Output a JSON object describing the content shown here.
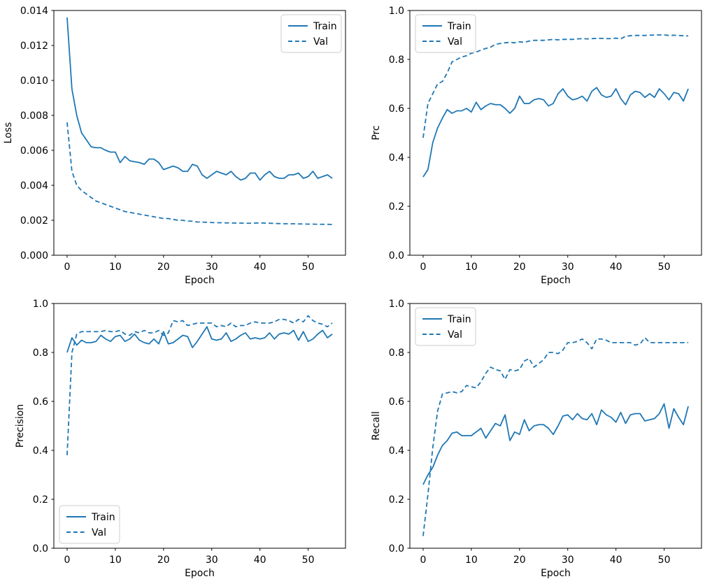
{
  "figure": {
    "background_color": "#ffffff",
    "line_color": "#1f77b4",
    "legend_labels": [
      "Train",
      "Val"
    ]
  },
  "chart_data": [
    {
      "type": "line",
      "title": "",
      "xlabel": "Epoch",
      "ylabel": "Loss",
      "x_start": 0,
      "x_step": 1,
      "xlim": [
        -2.75,
        57.75
      ],
      "ylim": [
        0,
        0.014
      ],
      "xticks": [
        0,
        10,
        20,
        30,
        40,
        50
      ],
      "xtick_labels": [
        "0",
        "10",
        "20",
        "30",
        "40",
        "50"
      ],
      "yticks": [
        0,
        0.002,
        0.004,
        0.006,
        0.008,
        0.01,
        0.012,
        0.014
      ],
      "ytick_labels": [
        "0.000",
        "0.002",
        "0.004",
        "0.006",
        "0.008",
        "0.010",
        "0.012",
        "0.014"
      ],
      "grid": false,
      "legend_position": "upper right",
      "series": [
        {
          "name": "Train",
          "line_style": "solid",
          "values": [
            0.0136,
            0.0095,
            0.008,
            0.007,
            0.0066,
            0.0062,
            0.00615,
            0.00615,
            0.006,
            0.0059,
            0.0059,
            0.0053,
            0.00565,
            0.0054,
            0.00535,
            0.0053,
            0.0052,
            0.0055,
            0.0055,
            0.0053,
            0.0049,
            0.005,
            0.0051,
            0.005,
            0.0048,
            0.0048,
            0.0052,
            0.0051,
            0.0046,
            0.0044,
            0.0046,
            0.0048,
            0.0047,
            0.0046,
            0.0048,
            0.0045,
            0.0043,
            0.0044,
            0.0047,
            0.0047,
            0.0043,
            0.0046,
            0.0048,
            0.0045,
            0.0044,
            0.0044,
            0.0046,
            0.0046,
            0.0047,
            0.0044,
            0.0045,
            0.0048,
            0.0044,
            0.0045,
            0.0046,
            0.0044
          ]
        },
        {
          "name": "Val",
          "line_style": "dashed",
          "values": [
            0.0076,
            0.0048,
            0.004,
            0.0037,
            0.0035,
            0.0033,
            0.0031,
            0.003,
            0.0029,
            0.0028,
            0.0027,
            0.0026,
            0.0025,
            0.00245,
            0.0024,
            0.00235,
            0.0023,
            0.00225,
            0.0022,
            0.00215,
            0.0021,
            0.0021,
            0.00205,
            0.002,
            0.002,
            0.00195,
            0.00195,
            0.0019,
            0.0019,
            0.00188,
            0.00187,
            0.00186,
            0.00186,
            0.00185,
            0.00185,
            0.00184,
            0.00184,
            0.00183,
            0.00183,
            0.00184,
            0.00185,
            0.00184,
            0.00183,
            0.00182,
            0.00181,
            0.0018,
            0.0018,
            0.0018,
            0.00179,
            0.00179,
            0.00178,
            0.00178,
            0.00177,
            0.00177,
            0.00177,
            0.00176
          ]
        }
      ]
    },
    {
      "type": "line",
      "title": "",
      "xlabel": "Epoch",
      "ylabel": "Prc",
      "x_start": 0,
      "x_step": 1,
      "xlim": [
        -2.75,
        57.75
      ],
      "ylim": [
        0,
        1.0
      ],
      "xticks": [
        0,
        10,
        20,
        30,
        40,
        50
      ],
      "xtick_labels": [
        "0",
        "10",
        "20",
        "30",
        "40",
        "50"
      ],
      "yticks": [
        0,
        0.2,
        0.4,
        0.6,
        0.8,
        1.0
      ],
      "ytick_labels": [
        "0.0",
        "0.2",
        "0.4",
        "0.6",
        "0.8",
        "1.0"
      ],
      "grid": false,
      "legend_position": "upper left",
      "series": [
        {
          "name": "Train",
          "line_style": "solid",
          "values": [
            0.32,
            0.35,
            0.46,
            0.52,
            0.56,
            0.595,
            0.58,
            0.59,
            0.59,
            0.6,
            0.585,
            0.625,
            0.595,
            0.61,
            0.62,
            0.615,
            0.615,
            0.6,
            0.58,
            0.6,
            0.65,
            0.62,
            0.62,
            0.635,
            0.64,
            0.635,
            0.61,
            0.62,
            0.66,
            0.68,
            0.65,
            0.635,
            0.64,
            0.65,
            0.63,
            0.67,
            0.685,
            0.655,
            0.645,
            0.65,
            0.68,
            0.64,
            0.615,
            0.655,
            0.67,
            0.665,
            0.645,
            0.66,
            0.645,
            0.68,
            0.66,
            0.635,
            0.665,
            0.66,
            0.63,
            0.68
          ]
        },
        {
          "name": "Val",
          "line_style": "dashed",
          "values": [
            0.48,
            0.62,
            0.66,
            0.7,
            0.71,
            0.745,
            0.79,
            0.8,
            0.81,
            0.815,
            0.825,
            0.83,
            0.838,
            0.845,
            0.85,
            0.862,
            0.865,
            0.868,
            0.87,
            0.868,
            0.872,
            0.87,
            0.875,
            0.878,
            0.878,
            0.878,
            0.88,
            0.882,
            0.88,
            0.882,
            0.882,
            0.882,
            0.884,
            0.885,
            0.884,
            0.885,
            0.886,
            0.886,
            0.885,
            0.885,
            0.887,
            0.884,
            0.895,
            0.897,
            0.898,
            0.898,
            0.898,
            0.899,
            0.9,
            0.9,
            0.9,
            0.898,
            0.899,
            0.898,
            0.897,
            0.896
          ]
        }
      ]
    },
    {
      "type": "line",
      "title": "",
      "xlabel": "Epoch",
      "ylabel": "Precision",
      "x_start": 0,
      "x_step": 1,
      "xlim": [
        -2.75,
        57.75
      ],
      "ylim": [
        0,
        1.0
      ],
      "xticks": [
        0,
        10,
        20,
        30,
        40,
        50
      ],
      "xtick_labels": [
        "0",
        "10",
        "20",
        "30",
        "40",
        "50"
      ],
      "yticks": [
        0,
        0.2,
        0.4,
        0.6,
        0.8,
        1.0
      ],
      "ytick_labels": [
        "0.0",
        "0.2",
        "0.4",
        "0.6",
        "0.8",
        "1.0"
      ],
      "grid": false,
      "legend_position": "lower left",
      "series": [
        {
          "name": "Train",
          "line_style": "solid",
          "values": [
            0.8,
            0.86,
            0.83,
            0.85,
            0.84,
            0.84,
            0.845,
            0.87,
            0.855,
            0.845,
            0.865,
            0.87,
            0.845,
            0.855,
            0.875,
            0.85,
            0.84,
            0.835,
            0.855,
            0.835,
            0.885,
            0.835,
            0.84,
            0.855,
            0.87,
            0.865,
            0.82,
            0.845,
            0.875,
            0.905,
            0.855,
            0.85,
            0.855,
            0.88,
            0.845,
            0.855,
            0.87,
            0.88,
            0.855,
            0.86,
            0.855,
            0.86,
            0.88,
            0.855,
            0.875,
            0.88,
            0.875,
            0.89,
            0.85,
            0.885,
            0.845,
            0.855,
            0.875,
            0.89,
            0.86,
            0.875
          ]
        },
        {
          "name": "Val",
          "line_style": "dashed",
          "values": [
            0.38,
            0.8,
            0.875,
            0.885,
            0.885,
            0.885,
            0.885,
            0.885,
            0.89,
            0.885,
            0.885,
            0.89,
            0.875,
            0.87,
            0.885,
            0.88,
            0.89,
            0.88,
            0.88,
            0.89,
            0.87,
            0.88,
            0.93,
            0.925,
            0.93,
            0.91,
            0.915,
            0.92,
            0.92,
            0.92,
            0.92,
            0.905,
            0.91,
            0.905,
            0.92,
            0.905,
            0.91,
            0.91,
            0.92,
            0.925,
            0.92,
            0.92,
            0.92,
            0.925,
            0.935,
            0.935,
            0.93,
            0.92,
            0.935,
            0.925,
            0.95,
            0.93,
            0.92,
            0.915,
            0.905,
            0.92
          ]
        }
      ]
    },
    {
      "type": "line",
      "title": "",
      "xlabel": "Epoch",
      "ylabel": "Recall",
      "x_start": 0,
      "x_step": 1,
      "xlim": [
        -2.75,
        57.75
      ],
      "ylim": [
        0,
        1.0
      ],
      "xticks": [
        0,
        10,
        20,
        30,
        40,
        50
      ],
      "xtick_labels": [
        "0",
        "10",
        "20",
        "30",
        "40",
        "50"
      ],
      "yticks": [
        0,
        0.2,
        0.4,
        0.6,
        0.8,
        1.0
      ],
      "ytick_labels": [
        "0.0",
        "0.2",
        "0.4",
        "0.6",
        "0.8",
        "1.0"
      ],
      "grid": false,
      "legend_position": "upper left",
      "series": [
        {
          "name": "Train",
          "line_style": "solid",
          "values": [
            0.26,
            0.3,
            0.33,
            0.38,
            0.42,
            0.44,
            0.47,
            0.475,
            0.46,
            0.46,
            0.46,
            0.475,
            0.49,
            0.45,
            0.48,
            0.51,
            0.5,
            0.545,
            0.44,
            0.475,
            0.465,
            0.525,
            0.48,
            0.5,
            0.505,
            0.505,
            0.49,
            0.465,
            0.5,
            0.54,
            0.545,
            0.525,
            0.55,
            0.53,
            0.525,
            0.55,
            0.505,
            0.565,
            0.545,
            0.535,
            0.515,
            0.555,
            0.51,
            0.545,
            0.55,
            0.55,
            0.52,
            0.525,
            0.53,
            0.55,
            0.59,
            0.49,
            0.57,
            0.535,
            0.505,
            0.58
          ]
        },
        {
          "name": "Val",
          "line_style": "dashed",
          "values": [
            0.05,
            0.22,
            0.41,
            0.56,
            0.63,
            0.635,
            0.64,
            0.635,
            0.64,
            0.665,
            0.66,
            0.655,
            0.68,
            0.715,
            0.74,
            0.73,
            0.725,
            0.69,
            0.73,
            0.725,
            0.73,
            0.765,
            0.775,
            0.74,
            0.755,
            0.77,
            0.8,
            0.8,
            0.795,
            0.81,
            0.84,
            0.84,
            0.845,
            0.855,
            0.84,
            0.815,
            0.855,
            0.855,
            0.85,
            0.84,
            0.84,
            0.84,
            0.84,
            0.84,
            0.83,
            0.835,
            0.86,
            0.84,
            0.84,
            0.84,
            0.84,
            0.84,
            0.84,
            0.84,
            0.84,
            0.84
          ]
        }
      ]
    }
  ]
}
